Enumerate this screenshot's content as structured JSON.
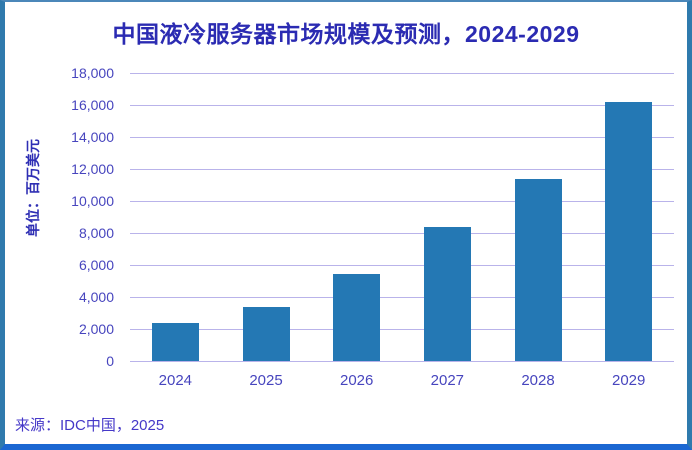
{
  "header": {
    "title": "中国液冷服务器市场规模及预测，2024-2029"
  },
  "y_axis": {
    "unit_label": "单位：百万美元"
  },
  "footer": {
    "source": "来源：IDC中国，2025"
  },
  "colors": {
    "bar": "#2478b4",
    "gridline": "#b9b3ea",
    "title_text": "#2b2bb2",
    "axis_text": "#4745be",
    "frame_border": "#2f7aad",
    "frame_border_bottom": "#1b67d2"
  },
  "chart_data": {
    "type": "bar",
    "title": "中国液冷服务器市场规模及预测，2024-2029",
    "xlabel": "",
    "ylabel": "单位：百万美元",
    "source": "来源：IDC中国，2025",
    "categories": [
      "2024",
      "2025",
      "2026",
      "2027",
      "2028",
      "2029"
    ],
    "values": [
      2370,
      3400,
      5450,
      8400,
      11400,
      16200
    ],
    "ylim": [
      0,
      18000
    ],
    "yticks": [
      0,
      2000,
      4000,
      6000,
      8000,
      10000,
      12000,
      14000,
      16000,
      18000
    ],
    "ytick_labels": [
      "0",
      "2,000",
      "4,000",
      "6,000",
      "8,000",
      "10,000",
      "12,000",
      "14,000",
      "16,000",
      "18,000"
    ],
    "grid": true,
    "legend": false
  }
}
